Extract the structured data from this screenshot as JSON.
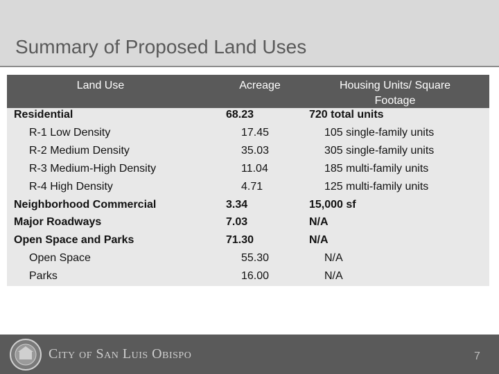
{
  "header": {
    "title": "Summary of Proposed Land Uses"
  },
  "table": {
    "columns": [
      "Land Use",
      "Acreage",
      "Housing Units/ Square Footage"
    ],
    "groups": [
      {
        "land_use": "Residential",
        "acreage": "68.23",
        "housing": "720 total units",
        "items": [
          {
            "land_use": "R-1 Low Density",
            "acreage": "17.45",
            "housing": "105 single-family units"
          },
          {
            "land_use": "R-2 Medium Density",
            "acreage": "35.03",
            "housing": "305 single-family units"
          },
          {
            "land_use": "R-3 Medium-High Density",
            "acreage": "11.04",
            "housing": "185 multi-family units"
          },
          {
            "land_use": "R-4 High Density",
            "acreage": "4.71",
            "housing": "125 multi-family units"
          }
        ]
      },
      {
        "land_use": "Neighborhood Commercial",
        "acreage": "3.34",
        "housing": "15,000 sf",
        "items": []
      },
      {
        "land_use": "Major Roadways",
        "acreage": "7.03",
        "housing": "N/A",
        "items": []
      },
      {
        "land_use": "Open Space and Parks",
        "acreage": "71.30",
        "housing": "N/A",
        "items": [
          {
            "land_use": "Open Space",
            "acreage": "55.30",
            "housing": "N/A"
          },
          {
            "land_use": "Parks",
            "acreage": "16.00",
            "housing": "N/A"
          }
        ]
      }
    ]
  },
  "footer": {
    "organization": "City of San Luis Obispo",
    "page_number": "7"
  }
}
